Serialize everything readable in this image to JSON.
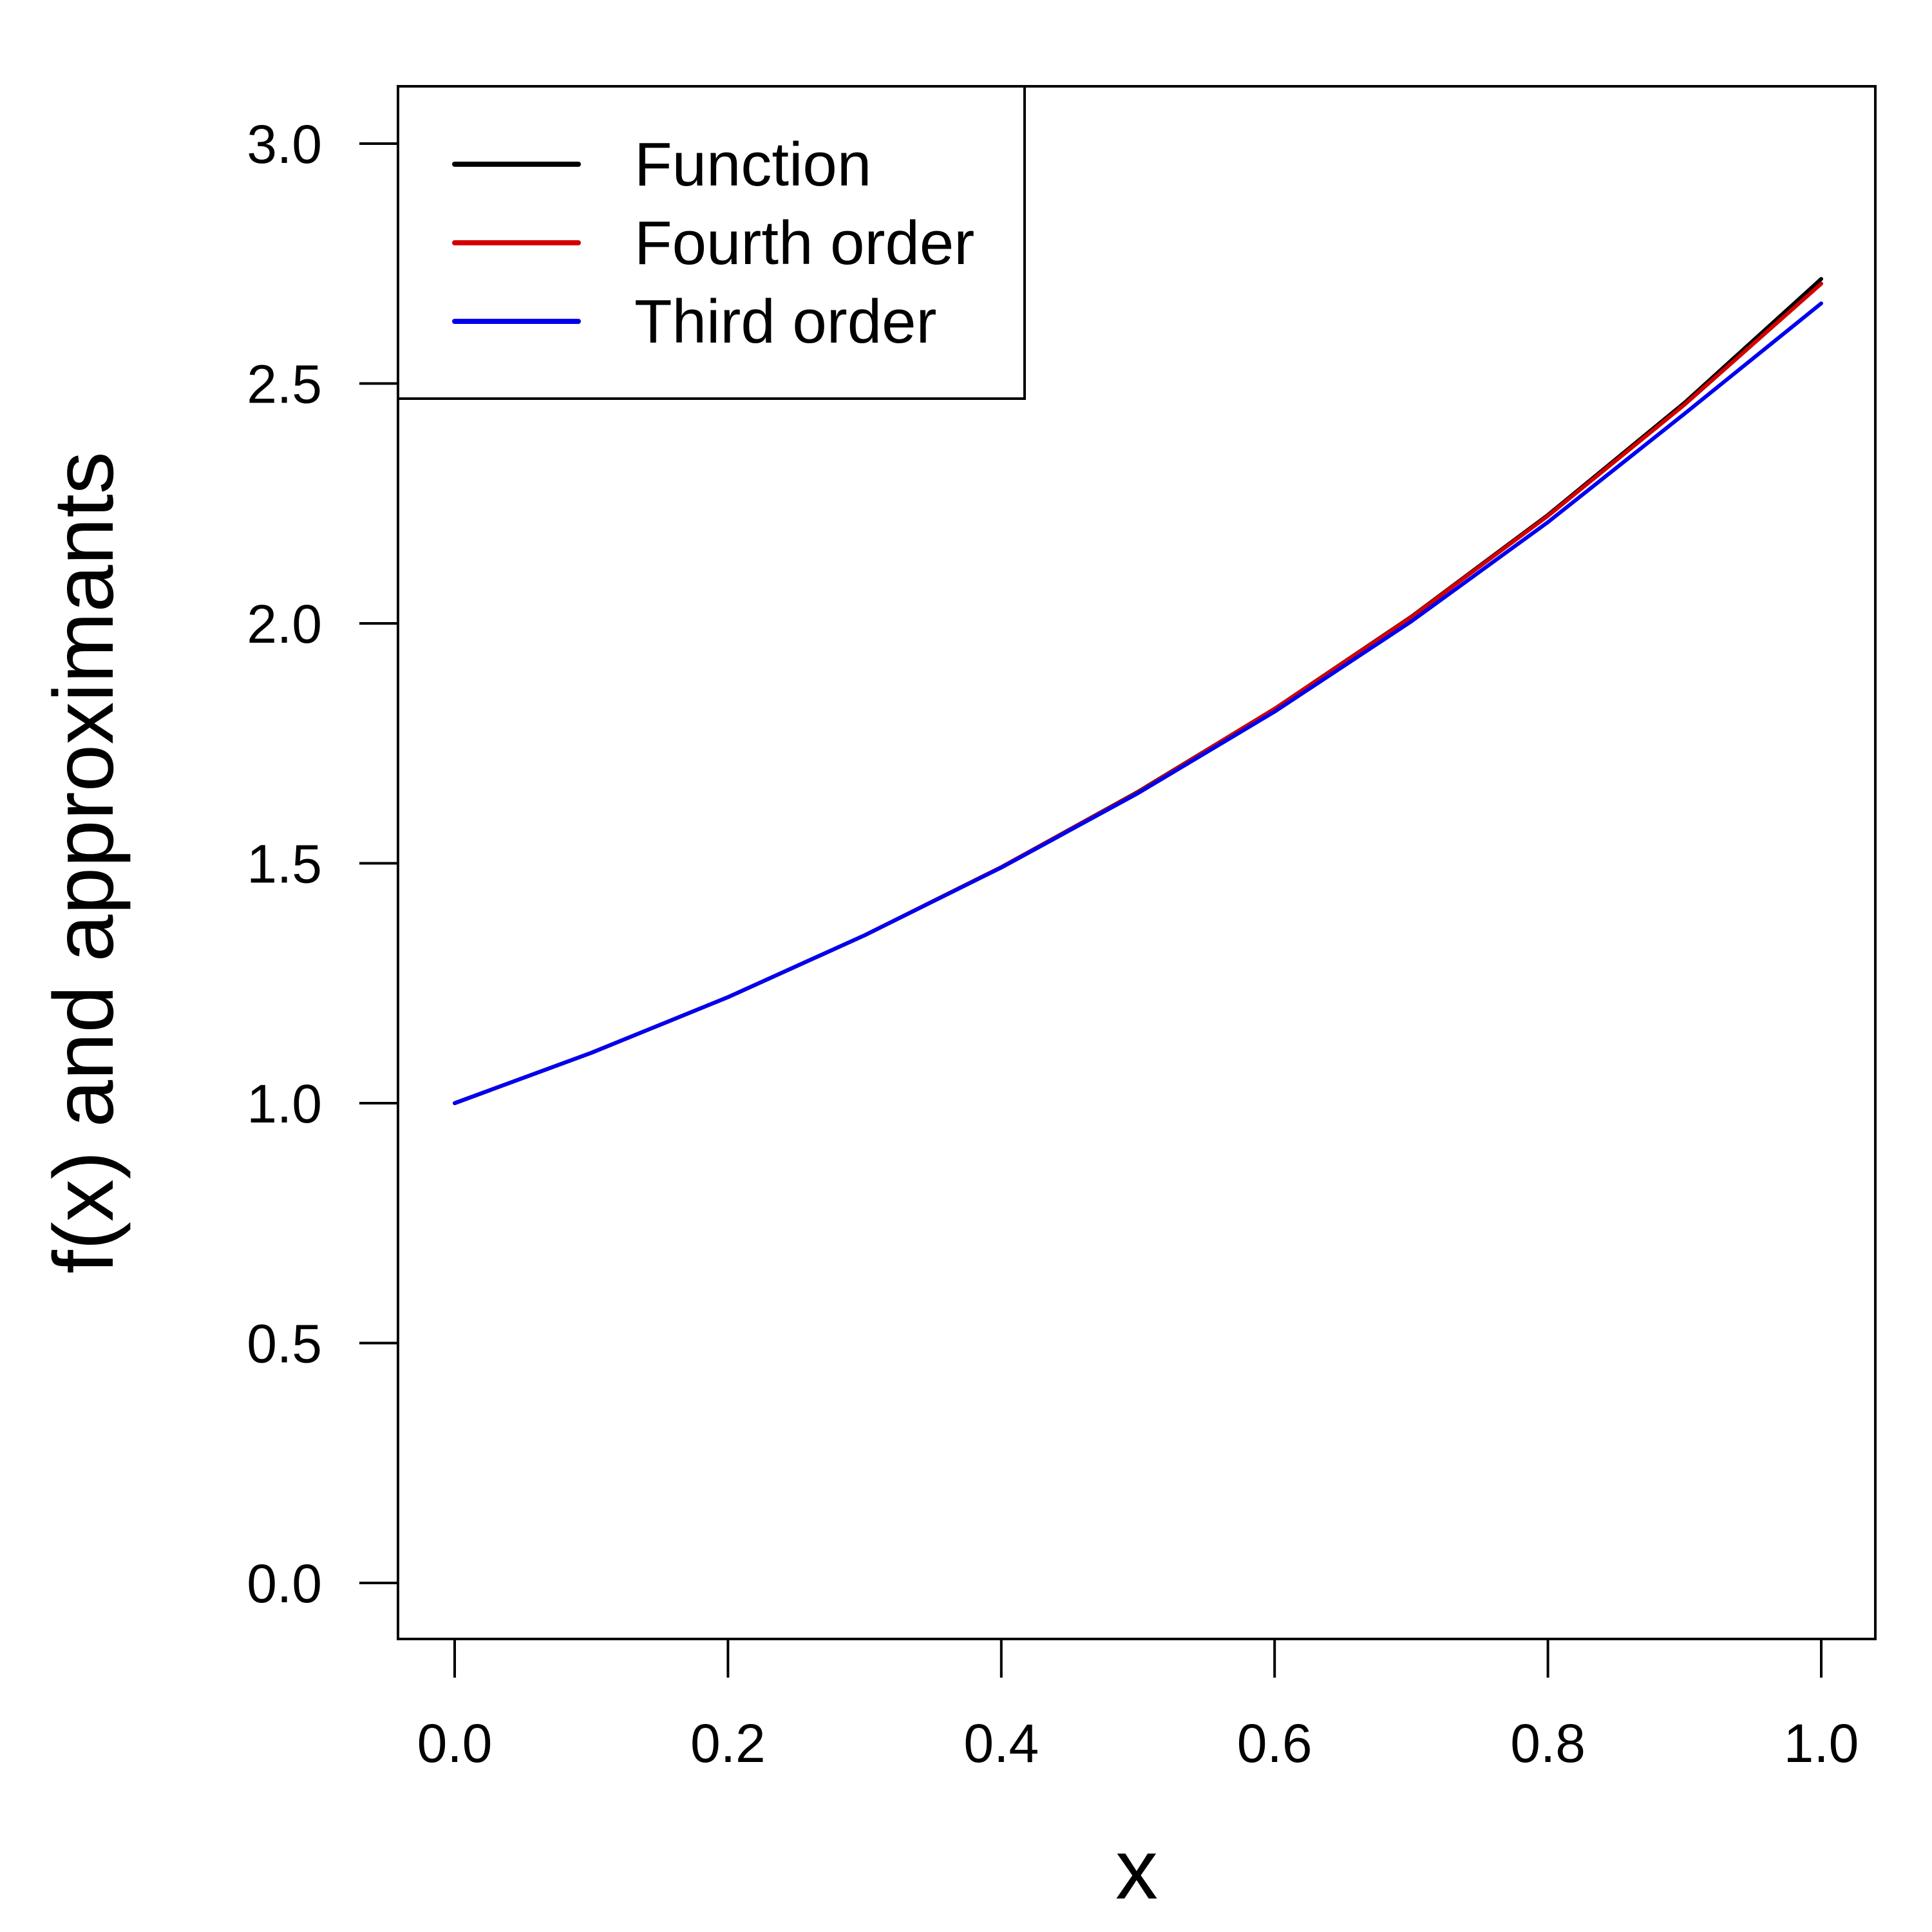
{
  "chart_data": {
    "type": "line",
    "title": "",
    "xlabel": "x",
    "ylabel": "f(x) and approximants",
    "xlim": [
      0.0,
      1.0
    ],
    "ylim": [
      0.0,
      3.0
    ],
    "x_ticks": [
      "0.0",
      "0.2",
      "0.4",
      "0.6",
      "0.8",
      "1.0"
    ],
    "y_ticks": [
      "0.0",
      "0.5",
      "1.0",
      "1.5",
      "2.0",
      "2.5",
      "3.0"
    ],
    "grid": false,
    "legend_position": "top-left",
    "x": [
      0.0,
      0.1,
      0.2,
      0.3,
      0.4,
      0.5,
      0.6,
      0.7,
      0.8,
      0.9,
      1.0
    ],
    "series": [
      {
        "name": "Function",
        "color": "#000000",
        "values": [
          1.0,
          1.105,
          1.221,
          1.35,
          1.492,
          1.649,
          1.822,
          2.014,
          2.226,
          2.46,
          2.718
        ]
      },
      {
        "name": "Fourth order",
        "color": "#d40000",
        "values": [
          1.0,
          1.105,
          1.221,
          1.35,
          1.492,
          1.648,
          1.822,
          2.013,
          2.224,
          2.456,
          2.708
        ]
      },
      {
        "name": "Third order",
        "color": "#0000f0",
        "values": [
          1.0,
          1.105,
          1.221,
          1.35,
          1.491,
          1.646,
          1.816,
          2.004,
          2.211,
          2.437,
          2.667
        ]
      }
    ]
  }
}
